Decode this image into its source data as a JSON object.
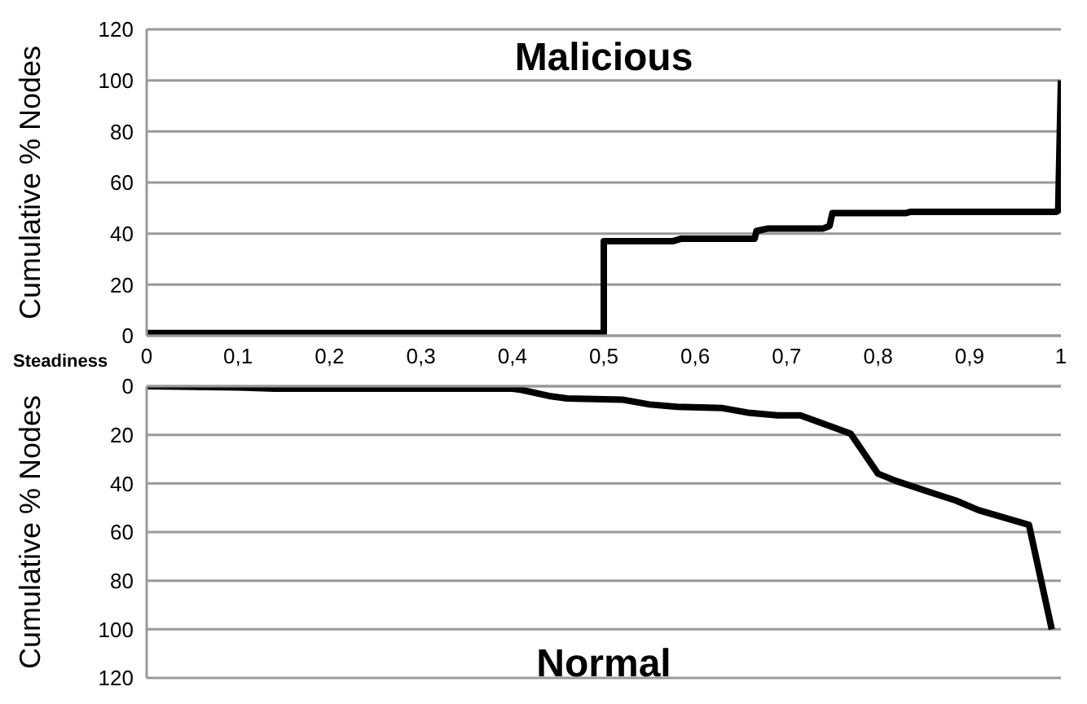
{
  "chart_data": [
    {
      "type": "line",
      "title": "Malicious",
      "xlabel": "Steadiness",
      "ylabel": "Cumulative % Nodes",
      "xlim": [
        0,
        1
      ],
      "xticks": [
        0,
        {
          "value": 0.1,
          "label": "0,1"
        },
        {
          "value": 0.2,
          "label": "0,2"
        },
        {
          "value": 0.3,
          "label": "0,3"
        },
        {
          "value": 0.4,
          "label": "0,4"
        },
        {
          "value": 0.5,
          "label": "0,5"
        },
        {
          "value": 0.6,
          "label": "0,6"
        },
        {
          "value": 0.7,
          "label": "0,7"
        },
        {
          "value": 0.8,
          "label": "0,8"
        },
        {
          "value": 0.9,
          "label": "0,9"
        },
        1
      ],
      "ylim": [
        0,
        120
      ],
      "yticks": [
        0,
        20,
        40,
        60,
        80,
        100,
        120
      ],
      "grid": "y",
      "marker": "none",
      "line_style": "solid",
      "series": [
        {
          "color": "#000000",
          "x": [
            0,
            0.4,
            0.5,
            0.5,
            0.575,
            0.585,
            0.665,
            0.667,
            0.68,
            0.74,
            0.747,
            0.75,
            0.83,
            0.835,
            0.995,
            0.997,
            1
          ],
          "values": [
            1,
            1,
            1,
            37,
            37,
            38,
            38,
            41,
            42,
            42,
            43,
            48,
            48,
            48.5,
            48.5,
            49,
            100
          ]
        }
      ]
    },
    {
      "type": "line",
      "title": "Normal",
      "ylabel": "Cumulative % Nodes",
      "xlim": [
        0,
        1
      ],
      "ylim": [
        120,
        0
      ],
      "yticks": [
        0,
        20,
        40,
        60,
        80,
        100,
        120
      ],
      "grid": "y",
      "tick_labels": "y",
      "marker": "none",
      "line_style": "solid",
      "series": [
        {
          "color": "#000000",
          "x": [
            0,
            0.1,
            0.14,
            0.4,
            0.41,
            0.44,
            0.46,
            0.52,
            0.55,
            0.58,
            0.63,
            0.66,
            0.69,
            0.715,
            0.77,
            0.8,
            0.82,
            0.86,
            0.885,
            0.91,
            0.965,
            0.99
          ],
          "values": [
            0,
            0.5,
            1,
            1,
            1.5,
            4,
            5,
            5.5,
            7.5,
            8.5,
            9,
            11,
            12,
            12,
            19.5,
            36,
            39,
            44,
            47,
            51,
            57,
            100
          ]
        }
      ]
    }
  ]
}
